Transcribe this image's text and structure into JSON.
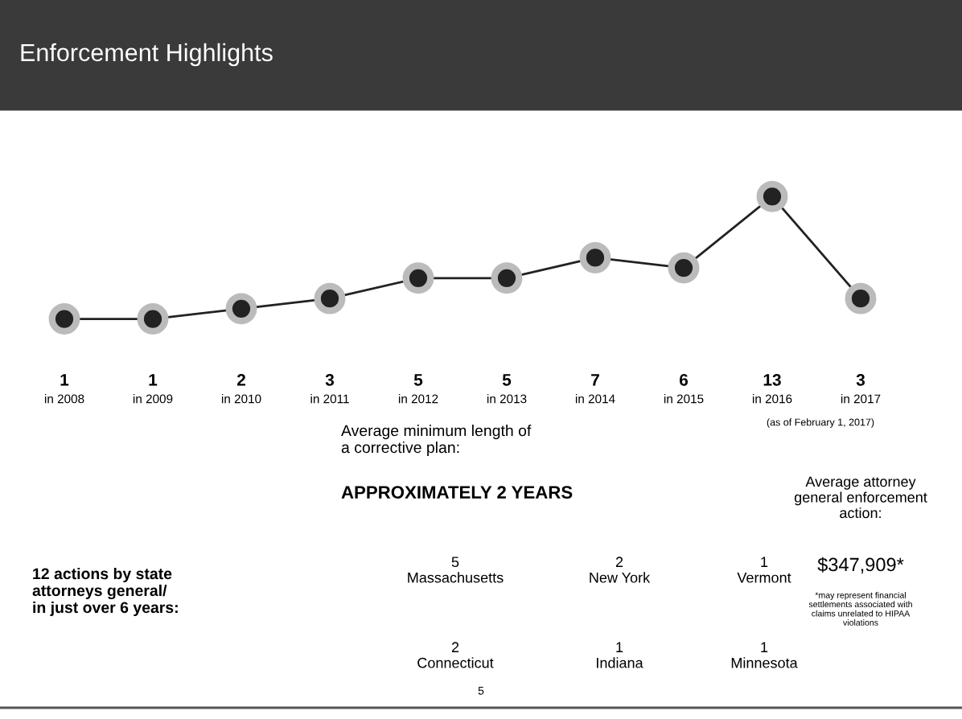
{
  "chart_data": {
    "type": "line",
    "title": "Enforcement Highlights",
    "categories": [
      "in 2008",
      "in 2009",
      "in 2010",
      "in 2011",
      "in 2012",
      "in 2013",
      "in 2014",
      "in 2015",
      "in 2016",
      "in 2017"
    ],
    "series": [
      {
        "color": "#222222",
        "values": [
          1,
          1,
          2,
          3,
          5,
          5,
          7,
          6,
          13,
          3
        ]
      }
    ],
    "marker": "circle",
    "line_style": "solid",
    "data_labels": true,
    "tick_labels": false,
    "annotations": [
      "(as of February 1, 2017)",
      "Average minimum length of\na corrective plan:",
      "APPROXIMATELY 2 YEARS",
      "Average attorney\ngeneral enforcement\naction:",
      "$347,909*",
      "*may represent financial\nsettlements associated with\nclaims unrelated to HIPAA\nviolations",
      "12 actions by state\nattorneys general/\nin just over 6 years:",
      "5\nMassachusetts",
      "2\nNew York",
      "1\nVermont",
      "2\nConnecticut",
      "1\nIndiana",
      "1\nMinnesota",
      "5"
    ]
  }
}
